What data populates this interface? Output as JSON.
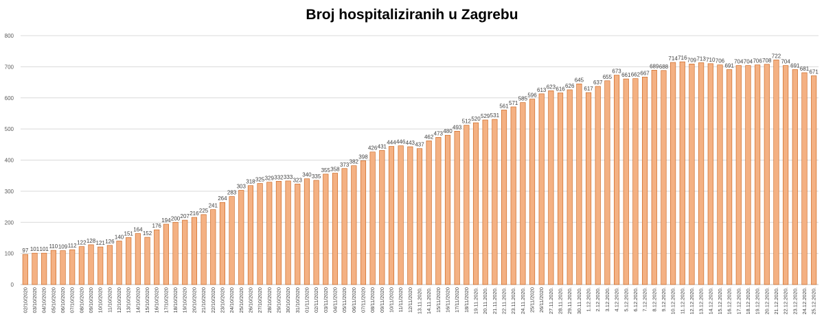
{
  "chart_data": {
    "type": "bar",
    "title": "Broj hospitaliziranih u Zagrebu",
    "ylim": [
      0,
      800
    ],
    "yticks": [
      0,
      100,
      200,
      300,
      400,
      500,
      600,
      700,
      800
    ],
    "grid": true,
    "legend": "none",
    "bar_color": "#f4b183",
    "bar_edge_color": "#c55a11",
    "categories": [
      "02/10/2020",
      "03/10/2020",
      "04/10/2020",
      "05/10/2020",
      "06/10/2020",
      "07/10/2020",
      "08/10/2020",
      "09/10/2020",
      "10/10/2020",
      "11/10/2020",
      "12/10/2020",
      "13/10/2020",
      "14/10/2020",
      "15/10/2020",
      "16/10/2020",
      "17/10/2020",
      "18/10/2020",
      "19/10/2020",
      "20/10/2020",
      "21/10/2020",
      "22/10/2020",
      "23/10/2020",
      "24/10/2020",
      "25/10/2020",
      "26/10/2020",
      "27/10/2020",
      "28/10/2020",
      "29/10/2020",
      "30/10/2020",
      "31/10/2020",
      "01/11/2020",
      "02/11/2020",
      "03/11/2020",
      "04/11/2020",
      "05/11/2020",
      "06/11/2020",
      "07/11/2020",
      "08/11/2020",
      "09/11/2020",
      "10/11/2020",
      "11/11/2020",
      "12/11/2020",
      "13.11.2020.",
      "14.11.2020.",
      "15/11/2020",
      "16/11/2020",
      "17/11/2020",
      "18/11/2020",
      "19.11.2020.",
      "20.11.2020.",
      "21.11.2020.",
      "22.11.2020.",
      "23.11.2020.",
      "24.11.2020.",
      "25/11/2020",
      "26/11/2020",
      "27.11.2020.",
      "28.11.2020.",
      "29.11.2020.",
      "30.11.2020.",
      "1.12.2020.",
      "2.12.2020.",
      "3.12.2020.",
      "4.12.2020.",
      "5.12.2020.",
      "6.12.2020.",
      "7.12.2020.",
      "8.12.2020.",
      "9.12.2020.",
      "10.12.2020.",
      "11.12.2020.",
      "12.12.2020.",
      "13.12.2020.",
      "14.12.2020.",
      "15.12.2020.",
      "16.12.2020.",
      "17.12.2020.",
      "18.12.2020.",
      "19.12.2020.",
      "20.12.2020.",
      "21.12.2020.",
      "22.12.2020.",
      "23.12.2020.",
      "24.12.2020.",
      "25.12.2020."
    ],
    "values": [
      97,
      101,
      101,
      110,
      109,
      112,
      122,
      128,
      121,
      126,
      140,
      151,
      164,
      152,
      176,
      194,
      200,
      207,
      216,
      225,
      241,
      264,
      283,
      303,
      318,
      325,
      329,
      332,
      333,
      323,
      340,
      335,
      355,
      358,
      373,
      382,
      398,
      426,
      431,
      444,
      446,
      443,
      437,
      462,
      473,
      480,
      493,
      512,
      520,
      529,
      531,
      561,
      571,
      585,
      596,
      613,
      623,
      616,
      626,
      645,
      617,
      637,
      655,
      673,
      661,
      662,
      667,
      689,
      688,
      714,
      716,
      709,
      713,
      710,
      706,
      691,
      704,
      704,
      706,
      708,
      722,
      704,
      691,
      681,
      671
    ]
  }
}
